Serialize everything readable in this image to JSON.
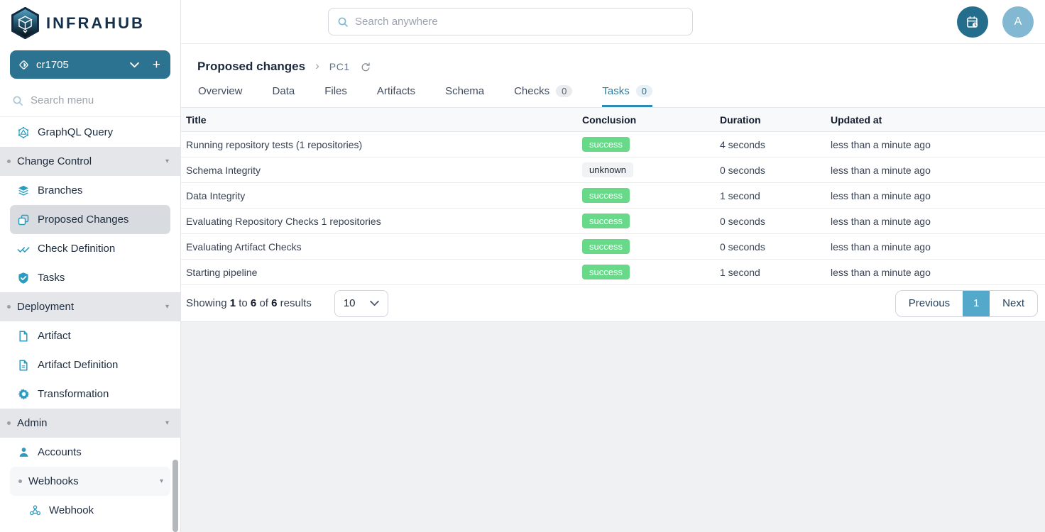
{
  "colors": {
    "accent_teal": "#2b7390",
    "accent_blue": "#54a9cb",
    "icon_teal": "#2b9cc0",
    "success_green": "#68d989",
    "tab_active": "#2c7ea1",
    "navy": "#14304a"
  },
  "brand": {
    "name": "INFRAHUB"
  },
  "branch_selector": {
    "current": "cr1705"
  },
  "sidebar": {
    "search_placeholder": "Search menu",
    "items": [
      {
        "type": "item",
        "icon": "graphql",
        "label": "GraphQL Query"
      },
      {
        "type": "group",
        "label": "Change Control"
      },
      {
        "type": "item",
        "icon": "layers",
        "label": "Branches"
      },
      {
        "type": "item",
        "icon": "copy",
        "label": "Proposed Changes",
        "selected": true
      },
      {
        "type": "item",
        "icon": "double-check",
        "label": "Check Definition"
      },
      {
        "type": "item",
        "icon": "shield-check",
        "label": "Tasks"
      },
      {
        "type": "group",
        "label": "Deployment"
      },
      {
        "type": "item",
        "icon": "file",
        "label": "Artifact"
      },
      {
        "type": "item",
        "icon": "file-lines",
        "label": "Artifact Definition"
      },
      {
        "type": "item",
        "icon": "gear",
        "label": "Transformation"
      },
      {
        "type": "group",
        "label": "Admin"
      },
      {
        "type": "item",
        "icon": "user",
        "label": "Accounts"
      },
      {
        "type": "subgroup",
        "label": "Webhooks"
      },
      {
        "type": "item",
        "icon": "webhook",
        "label": "Webhook",
        "indent": 2
      }
    ]
  },
  "topbar": {
    "search_placeholder": "Search anywhere",
    "avatar_initial": "A"
  },
  "page": {
    "breadcrumb": {
      "title": "Proposed changes",
      "item": "PC1"
    },
    "tabs": [
      {
        "label": "Overview"
      },
      {
        "label": "Data"
      },
      {
        "label": "Files"
      },
      {
        "label": "Artifacts"
      },
      {
        "label": "Schema"
      },
      {
        "label": "Checks",
        "badge": "0"
      },
      {
        "label": "Tasks",
        "badge": "0",
        "active": true
      }
    ]
  },
  "table": {
    "columns": [
      "Title",
      "Conclusion",
      "Duration",
      "Updated at"
    ],
    "rows": [
      {
        "title": "Running repository tests (1 repositories)",
        "conclusion": "success",
        "duration": "4 seconds",
        "updated_at": "less than a minute ago"
      },
      {
        "title": "Schema Integrity",
        "conclusion": "unknown",
        "duration": "0 seconds",
        "updated_at": "less than a minute ago"
      },
      {
        "title": "Data Integrity",
        "conclusion": "success",
        "duration": "1 second",
        "updated_at": "less than a minute ago"
      },
      {
        "title": "Evaluating Repository Checks 1 repositories",
        "conclusion": "success",
        "duration": "0 seconds",
        "updated_at": "less than a minute ago"
      },
      {
        "title": "Evaluating Artifact Checks",
        "conclusion": "success",
        "duration": "0 seconds",
        "updated_at": "less than a minute ago"
      },
      {
        "title": "Starting pipeline",
        "conclusion": "success",
        "duration": "1 second",
        "updated_at": "less than a minute ago"
      }
    ]
  },
  "pagination": {
    "summary": {
      "label_showing": "Showing",
      "from": "1",
      "label_to": "to",
      "to": "6",
      "label_of": "of",
      "total": "6",
      "label_results": "results"
    },
    "page_size": "10",
    "previous_label": "Previous",
    "current_page": "1",
    "next_label": "Next"
  }
}
